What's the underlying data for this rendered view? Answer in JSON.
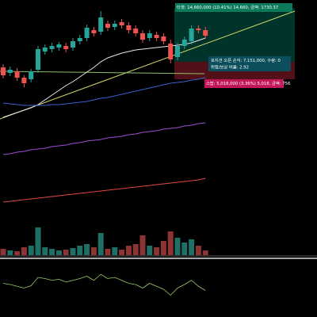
{
  "chart_data": {
    "type": "candlestick",
    "ylim": [
      0,
      400
    ],
    "open": [
      315,
      308,
      310,
      302,
      300,
      312,
      335,
      338,
      340,
      342,
      340,
      348,
      352,
      362,
      360,
      370,
      366,
      372,
      368,
      364,
      358,
      352,
      356,
      354,
      345,
      328,
      342,
      348,
      364,
      362
    ],
    "close": [
      305,
      312,
      302,
      295,
      310,
      338,
      340,
      342,
      344,
      338,
      348,
      352,
      365,
      358,
      378,
      365,
      370,
      368,
      362,
      358,
      350,
      358,
      352,
      348,
      325,
      342,
      350,
      364,
      362,
      355
    ],
    "high": [
      319,
      316,
      314,
      305,
      313,
      342,
      344,
      346,
      347,
      346,
      352,
      356,
      369,
      366,
      386,
      374,
      374,
      376,
      372,
      368,
      362,
      362,
      360,
      358,
      350,
      346,
      354,
      368,
      368,
      366
    ],
    "low": [
      301,
      304,
      298,
      290,
      296,
      308,
      331,
      334,
      336,
      334,
      336,
      344,
      348,
      354,
      356,
      361,
      362,
      364,
      358,
      354,
      346,
      348,
      348,
      344,
      320,
      324,
      338,
      344,
      358,
      351
    ],
    "up_color": "#26a69a",
    "down_color": "#ef5350",
    "series": [
      {
        "color": "#e8e8e8",
        "values": [
          252,
          255,
          258,
          261,
          264,
          268,
          274,
          280,
          286,
          292,
          297,
          303,
          309,
          315,
          322,
          327,
          330,
          333,
          335,
          337,
          338,
          339,
          340,
          341,
          342,
          343,
          344,
          346,
          349,
          352
        ]
      },
      {
        "color": "#3f5fd0",
        "values": [
          270,
          269,
          268,
          267,
          267,
          267,
          267,
          268,
          268,
          269,
          270,
          271,
          272,
          274,
          276,
          277,
          279,
          281,
          283,
          285,
          287,
          289,
          291,
          293,
          295,
          296,
          297,
          299,
          300,
          302
        ]
      },
      {
        "color": "#9c4fd6",
        "values": [
          205,
          206,
          208,
          209,
          211,
          212,
          213,
          215,
          216,
          217,
          219,
          220,
          222,
          223,
          224,
          226,
          227,
          228,
          230,
          231,
          233,
          234,
          235,
          237,
          238,
          239,
          241,
          242,
          244,
          245
        ]
      },
      {
        "color": "#e04848",
        "values": [
          145,
          146,
          147,
          148,
          149,
          150,
          151,
          152,
          153,
          154,
          155,
          156,
          157,
          158,
          159,
          160,
          161,
          162,
          163,
          164,
          165,
          166,
          167,
          168,
          169,
          170,
          171,
          172,
          173,
          175
        ]
      }
    ],
    "volume_ylim": [
      0,
      40
    ],
    "volume": [
      8,
      6,
      5,
      10,
      12,
      35,
      10,
      8,
      6,
      7,
      9,
      12,
      14,
      10,
      28,
      8,
      10,
      7,
      12,
      14,
      25,
      12,
      10,
      18,
      30,
      22,
      16,
      20,
      12,
      6
    ],
    "rsi_ylim": [
      0,
      100
    ],
    "rsi": [
      50,
      48,
      45,
      42,
      46,
      60,
      58,
      55,
      57,
      52,
      55,
      58,
      62,
      55,
      65,
      58,
      60,
      55,
      50,
      48,
      42,
      50,
      45,
      40,
      30,
      42,
      48,
      55,
      45,
      38
    ],
    "annotations": {
      "target": "타겟: 14,660,000 (10.41%) 14,660, 금액: 1730.37",
      "position_line1": "포지션 오픈 손익: 7,151,000, 수량: 0",
      "position_line2": "위험/보상 비율: 2.92",
      "stop": "스탑: 5,018,000 (3.36%) 5,018, 금액: 756"
    }
  }
}
